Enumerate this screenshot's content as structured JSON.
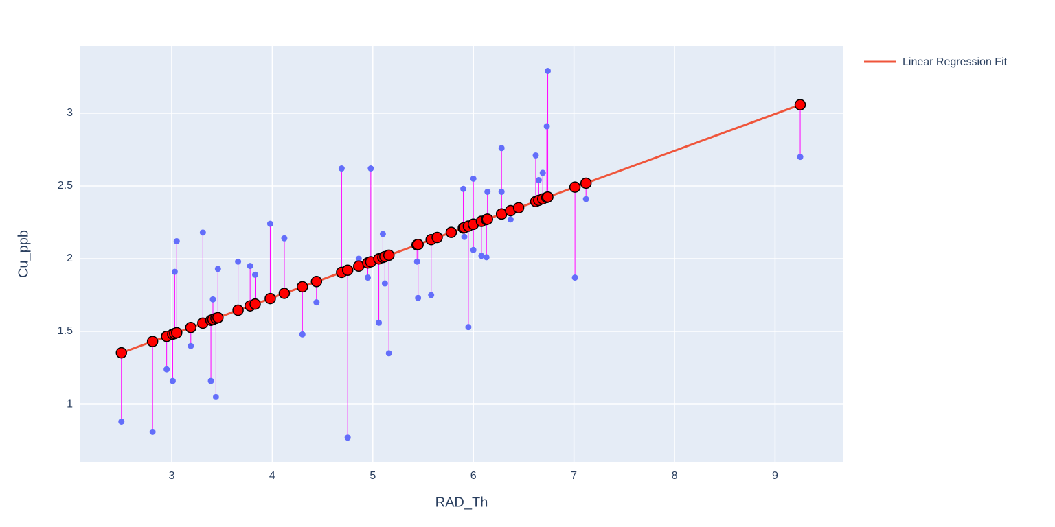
{
  "chart_data": {
    "type": "scatter",
    "x_label": "RAD_Th",
    "y_label": "Cu_ppb",
    "x": [
      2.5,
      2.81,
      2.95,
      3.01,
      3.03,
      3.05,
      3.19,
      3.31,
      3.39,
      3.41,
      3.44,
      3.46,
      3.66,
      3.78,
      3.83,
      3.98,
      4.12,
      4.3,
      4.44,
      4.69,
      4.75,
      4.86,
      4.95,
      4.98,
      5.06,
      5.1,
      5.12,
      5.16,
      5.44,
      5.45,
      5.58,
      5.64,
      5.78,
      5.9,
      5.91,
      5.95,
      6.0,
      6.0,
      6.08,
      6.13,
      6.14,
      6.28,
      6.28,
      6.37,
      6.45,
      6.62,
      6.65,
      6.69,
      6.73,
      6.74,
      7.01,
      7.12,
      9.25
    ],
    "series": [
      {
        "color": "#636efa",
        "values": [
          0.88,
          0.81,
          1.24,
          1.16,
          1.91,
          2.12,
          1.4,
          2.18,
          1.16,
          1.72,
          1.05,
          1.93,
          1.98,
          1.95,
          1.89,
          2.24,
          2.14,
          1.48,
          1.7,
          2.62,
          0.77,
          2.0,
          1.87,
          2.62,
          1.56,
          2.17,
          1.83,
          1.35,
          1.98,
          1.73,
          1.75,
          2.14,
          2.19,
          2.48,
          2.15,
          1.53,
          2.55,
          2.06,
          2.02,
          2.01,
          2.46,
          2.76,
          2.46,
          2.27,
          2.35,
          2.71,
          2.54,
          2.59,
          2.91,
          3.29,
          1.87,
          2.41,
          2.7
        ]
      },
      {
        "name": "Linear Regression Fit",
        "color": "#ef553b",
        "marker_color": "#ff0000",
        "values": [
          1.353,
          1.431,
          1.466,
          1.481,
          1.486,
          1.491,
          1.527,
          1.557,
          1.577,
          1.582,
          1.59,
          1.595,
          1.646,
          1.676,
          1.688,
          1.726,
          1.762,
          1.807,
          1.843,
          1.906,
          1.921,
          1.949,
          1.971,
          1.979,
          1.999,
          2.009,
          2.014,
          2.024,
          2.095,
          2.098,
          2.131,
          2.146,
          2.181,
          2.211,
          2.214,
          2.224,
          2.237,
          2.237,
          2.257,
          2.269,
          2.272,
          2.307,
          2.307,
          2.33,
          2.35,
          2.393,
          2.401,
          2.411,
          2.421,
          2.424,
          2.492,
          2.519,
          3.058
        ]
      }
    ],
    "residual_color": "#ff00ff",
    "xlim": [
      2.085,
      9.68
    ],
    "xticks": [
      3,
      4,
      5,
      6,
      7,
      8,
      9
    ],
    "ylim": [
      0.604,
      3.462
    ],
    "yticks": [
      1,
      1.5,
      2,
      2.5,
      3
    ],
    "grid": true,
    "plot_background": "#e5ecf6",
    "legend": "right"
  }
}
